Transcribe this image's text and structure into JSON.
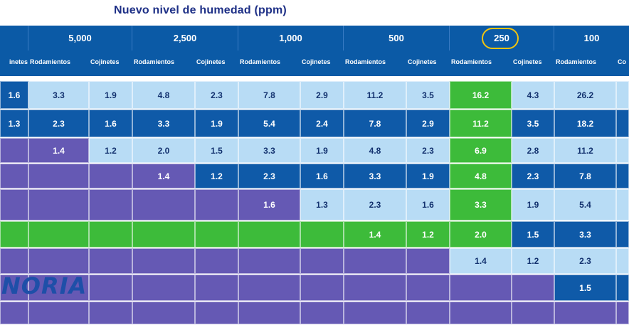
{
  "title": "Nuevo nivel de humedad (ppm)",
  "ppm_levels": [
    "5,000",
    "2,500",
    "1,000",
    "500",
    "250",
    "100"
  ],
  "highlighted_ppm": "250",
  "sub_labels": {
    "first_partial": "inetes",
    "bearing": "Rodamientos",
    "bushing": "Cojinetes",
    "last_partial": "Co"
  },
  "logo": "NORIA",
  "columns_note": "Column order: partial Cojinetes, then Rodamientos/Cojinetes pairs for 5,000, 2,500, 1,000, 500, 250, then Rodamientos for 100",
  "rows": [
    [
      "1.6",
      "3.3",
      "1.9",
      "4.8",
      "2.3",
      "7.8",
      "2.9",
      "11.2",
      "3.5",
      "16.2",
      "4.3",
      "26.2"
    ],
    [
      "1.3",
      "2.3",
      "1.6",
      "3.3",
      "1.9",
      "5.4",
      "2.4",
      "7.8",
      "2.9",
      "11.2",
      "3.5",
      "18.2"
    ],
    [
      "",
      "1.4",
      "1.2",
      "2.0",
      "1.5",
      "3.3",
      "1.9",
      "4.8",
      "2.3",
      "6.9",
      "2.8",
      "11.2"
    ],
    [
      "",
      "",
      "",
      "1.4",
      "1.2",
      "2.3",
      "1.6",
      "3.3",
      "1.9",
      "4.8",
      "2.3",
      "7.8"
    ],
    [
      "",
      "",
      "",
      "",
      "",
      "1.6",
      "1.3",
      "2.3",
      "1.6",
      "3.3",
      "1.9",
      "5.4"
    ],
    [
      "",
      "",
      "",
      "",
      "",
      "",
      "",
      "1.4",
      "1.2",
      "2.0",
      "1.5",
      "3.3"
    ],
    [
      "",
      "",
      "",
      "",
      "",
      "",
      "",
      "",
      "",
      "1.4",
      "1.2",
      "2.3"
    ],
    [
      "",
      "",
      "",
      "",
      "",
      "",
      "",
      "",
      "",
      "",
      "",
      "1.5"
    ],
    [
      "",
      "",
      "",
      "",
      "",
      "",
      "",
      "",
      "",
      "",
      "",
      ""
    ]
  ],
  "row_colors": [
    [
      "dark",
      "light",
      "light",
      "light",
      "light",
      "light",
      "light",
      "light",
      "light",
      "green",
      "light",
      "light",
      "light"
    ],
    [
      "dark",
      "dark",
      "dark",
      "dark",
      "dark",
      "dark",
      "dark",
      "dark",
      "dark",
      "green",
      "dark",
      "dark",
      "dark"
    ],
    [
      "purple",
      "purple",
      "light",
      "light",
      "light",
      "light",
      "light",
      "light",
      "light",
      "green",
      "light",
      "light",
      "light"
    ],
    [
      "purple",
      "purple",
      "purple",
      "purple",
      "dark",
      "dark",
      "dark",
      "dark",
      "dark",
      "green",
      "dark",
      "dark",
      "dark"
    ],
    [
      "purple",
      "purple",
      "purple",
      "purple",
      "purple",
      "purple",
      "light",
      "light",
      "light",
      "green",
      "light",
      "light",
      "light"
    ],
    [
      "green",
      "green",
      "green",
      "green",
      "green",
      "green",
      "green",
      "green",
      "green",
      "green",
      "dark",
      "dark",
      "dark"
    ],
    [
      "purple",
      "purple",
      "purple",
      "purple",
      "purple",
      "purple",
      "purple",
      "purple",
      "purple",
      "light",
      "light",
      "light",
      "light"
    ],
    [
      "purple",
      "purple",
      "purple",
      "purple",
      "purple",
      "purple",
      "purple",
      "purple",
      "purple",
      "purple",
      "purple",
      "dark",
      "dark"
    ],
    [
      "purple",
      "purple",
      "purple",
      "purple",
      "purple",
      "purple",
      "purple",
      "purple",
      "purple",
      "purple",
      "purple",
      "purple",
      "purple"
    ]
  ],
  "colors": {
    "header": "#0b5aa6",
    "light": "#b8dcf5",
    "dark": "#0f5aa8",
    "green": "#3dbb3a",
    "purple": "#6559b4",
    "highlight_ring": "#f2c40f"
  }
}
